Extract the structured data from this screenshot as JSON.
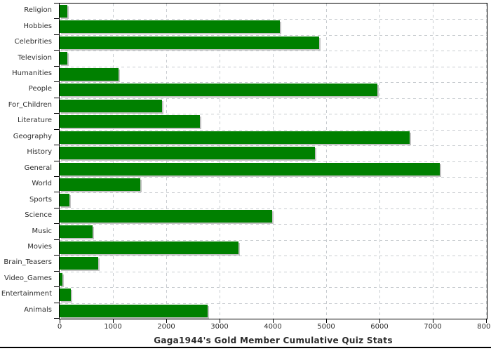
{
  "chart_data": {
    "type": "bar",
    "orientation": "horizontal",
    "title": "Gaga1944's Gold Member Cumulative Quiz Stats",
    "categories": [
      "Religion",
      "Hobbies",
      "Celebrities",
      "Television",
      "Humanities",
      "People",
      "For_Children",
      "Literature",
      "Geography",
      "History",
      "General",
      "World",
      "Sports",
      "Science",
      "Music",
      "Movies",
      "Brain_Teasers",
      "Video_Games",
      "Entertainment",
      "Animals"
    ],
    "values": [
      150,
      4130,
      4870,
      140,
      1110,
      5960,
      1920,
      2630,
      6560,
      4790,
      7130,
      1510,
      180,
      3990,
      620,
      3360,
      730,
      50,
      210,
      2780
    ],
    "xlim": [
      0,
      8000
    ],
    "x_tick_step": 1000,
    "x_tick_labels": [
      "0",
      "1000",
      "2000",
      "3000",
      "4000",
      "5000",
      "6000",
      "7000",
      "8000"
    ],
    "xlabel": "",
    "ylabel": "",
    "grid": "dashed-both-axes",
    "legend": "none",
    "bar_color": "#008000",
    "grid_color": "#c8ccd0",
    "axis_color": "#000000",
    "text_color": "#2e2e2e",
    "background_color": "#ffffff"
  }
}
